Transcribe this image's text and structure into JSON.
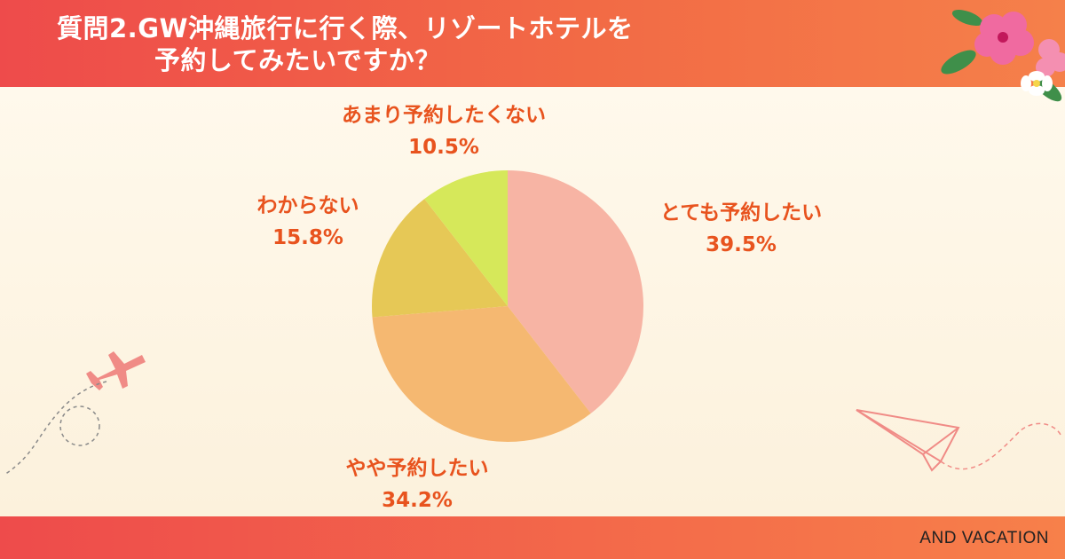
{
  "header": {
    "title_line1": "質問2.GW沖縄旅行に行く際、リゾートホテルを",
    "title_line2": "予約してみたいですか？"
  },
  "footer": {
    "brand": "AND VACATION"
  },
  "colors": {
    "header": "#ee4b4b",
    "label_text": "#e8531e",
    "slice_very": "#f7b4a4",
    "slice_somewhat": "#f5b871",
    "slice_unknown": "#e6c856",
    "slice_not_much": "#d6e85a"
  },
  "chart_data": {
    "type": "pie",
    "slices": [
      {
        "label": "とても予約したい",
        "value": 39.5,
        "value_label": "39.5%",
        "color": "#f7b4a4"
      },
      {
        "label": "やや予約したい",
        "value": 34.2,
        "value_label": "34.2%",
        "color": "#f5b871"
      },
      {
        "label": "わからない",
        "value": 15.8,
        "value_label": "15.8%",
        "color": "#e6c856"
      },
      {
        "label": "あまり予約したくない",
        "value": 10.5,
        "value_label": "10.5%",
        "color": "#d6e85a"
      }
    ]
  }
}
